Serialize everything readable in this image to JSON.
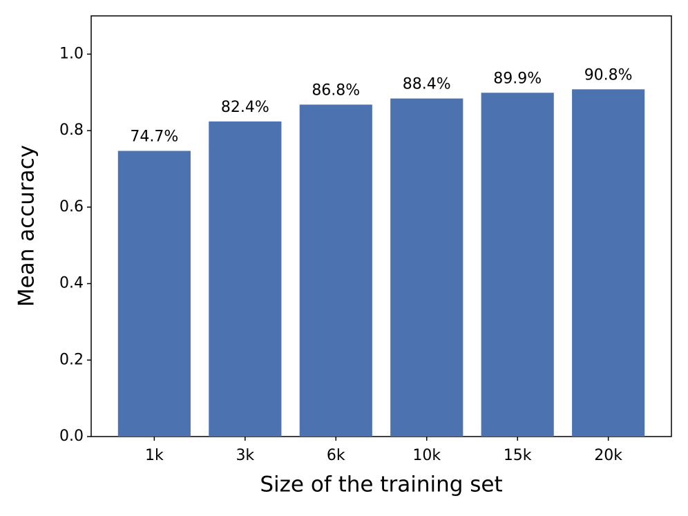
{
  "chart_data": {
    "type": "bar",
    "x_label": "Size of the training set",
    "y_label": "Mean accuracy",
    "categories": [
      "1k",
      "3k",
      "6k",
      "10k",
      "15k",
      "20k"
    ],
    "values": [
      0.747,
      0.824,
      0.868,
      0.884,
      0.899,
      0.908
    ],
    "value_labels": [
      "74.7%",
      "82.4%",
      "86.8%",
      "88.4%",
      "89.9%",
      "90.8%"
    ],
    "color": "#4c72b0",
    "ylim": [
      0,
      1.1
    ],
    "yticks": [
      {
        "value": 0,
        "label": "0.0"
      },
      0.2,
      0.4,
      0.6,
      0.8,
      {
        "value": 1,
        "label": "1.0"
      }
    ],
    "grid": false
  }
}
